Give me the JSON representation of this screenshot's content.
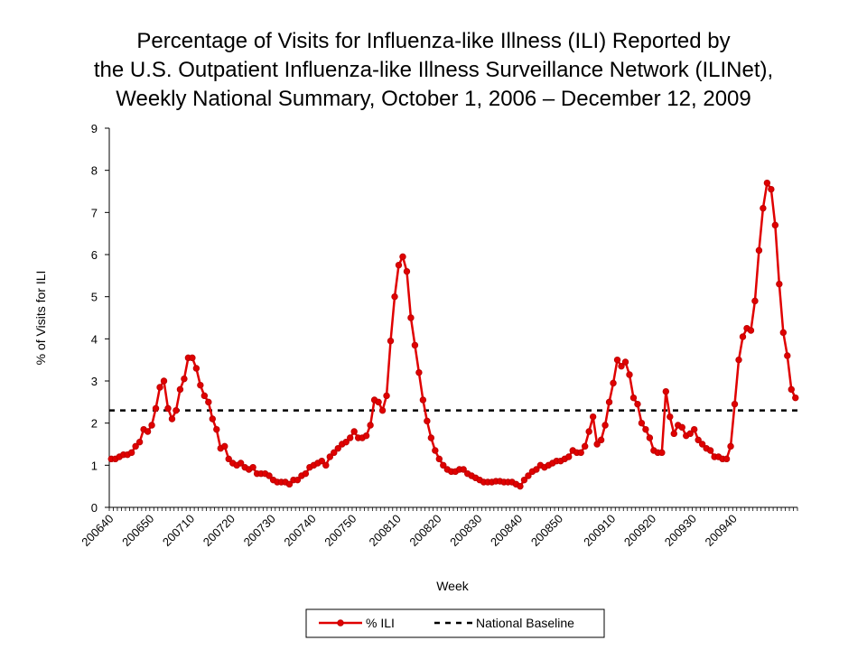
{
  "title": {
    "line1": "Percentage of Visits for Influenza-like Illness (ILI) Reported by",
    "line2": "the U.S. Outpatient Influenza-like Illness Surveillance Network (ILINet),",
    "line3": "Weekly National Summary, October 1, 2006 – December 12, 2009"
  },
  "chart_data": {
    "type": "line",
    "xlabel": "Week",
    "ylabel": "% of Visits for ILI",
    "ylim": [
      0,
      9
    ],
    "yticks": [
      0,
      1,
      2,
      3,
      4,
      5,
      6,
      7,
      8,
      9
    ],
    "grid": false,
    "legend_position": "bottom-center",
    "x_tick_labels": [
      {
        "index": 0,
        "label": "200640"
      },
      {
        "index": 10,
        "label": "200650"
      },
      {
        "index": 20,
        "label": "200710"
      },
      {
        "index": 30,
        "label": "200720"
      },
      {
        "index": 40,
        "label": "200730"
      },
      {
        "index": 50,
        "label": "200740"
      },
      {
        "index": 60,
        "label": "200750"
      },
      {
        "index": 71,
        "label": "200810"
      },
      {
        "index": 81,
        "label": "200820"
      },
      {
        "index": 91,
        "label": "200830"
      },
      {
        "index": 101,
        "label": "200840"
      },
      {
        "index": 111,
        "label": "200850"
      },
      {
        "index": 124,
        "label": "200910"
      },
      {
        "index": 134,
        "label": "200920"
      },
      {
        "index": 144,
        "label": "200930"
      },
      {
        "index": 154,
        "label": "200940"
      }
    ],
    "series": [
      {
        "name": "% ILI",
        "color": "#e00000",
        "marker": "circle",
        "values": [
          1.15,
          1.15,
          1.2,
          1.25,
          1.25,
          1.3,
          1.45,
          1.55,
          1.85,
          1.8,
          1.95,
          2.35,
          2.85,
          3.0,
          2.35,
          2.1,
          2.3,
          2.8,
          3.05,
          3.55,
          3.55,
          3.3,
          2.9,
          2.65,
          2.5,
          2.1,
          1.85,
          1.4,
          1.45,
          1.15,
          1.05,
          1.0,
          1.05,
          0.95,
          0.9,
          0.95,
          0.8,
          0.8,
          0.8,
          0.75,
          0.65,
          0.6,
          0.6,
          0.6,
          0.55,
          0.65,
          0.65,
          0.75,
          0.8,
          0.95,
          1.0,
          1.05,
          1.1,
          1.0,
          1.2,
          1.3,
          1.4,
          1.5,
          1.55,
          1.65,
          1.8,
          1.65,
          1.65,
          1.7,
          1.95,
          2.55,
          2.5,
          2.3,
          2.65,
          3.95,
          5.0,
          5.75,
          5.95,
          5.6,
          4.5,
          3.85,
          3.2,
          2.55,
          2.05,
          1.65,
          1.35,
          1.15,
          1.0,
          0.9,
          0.85,
          0.85,
          0.9,
          0.9,
          0.8,
          0.75,
          0.7,
          0.65,
          0.6,
          0.6,
          0.6,
          0.62,
          0.62,
          0.6,
          0.6,
          0.6,
          0.55,
          0.5,
          0.65,
          0.75,
          0.85,
          0.9,
          1.0,
          0.95,
          1.0,
          1.05,
          1.1,
          1.1,
          1.15,
          1.2,
          1.35,
          1.3,
          1.3,
          1.45,
          1.8,
          2.15,
          1.5,
          1.6,
          1.95,
          2.5,
          2.95,
          3.5,
          3.35,
          3.45,
          3.15,
          2.6,
          2.45,
          2.0,
          1.85,
          1.65,
          1.35,
          1.3,
          1.3,
          2.75,
          2.15,
          1.75,
          1.95,
          1.9,
          1.7,
          1.75,
          1.85,
          1.6,
          1.5,
          1.4,
          1.35,
          1.2,
          1.2,
          1.15,
          1.15,
          1.45,
          2.45,
          3.5,
          4.05,
          4.25,
          4.2,
          4.9,
          6.1,
          7.1,
          7.7,
          7.55,
          6.7,
          5.3,
          4.15,
          3.6,
          2.8,
          2.6
        ]
      },
      {
        "name": "National Baseline",
        "color": "#000000",
        "style": "dashed",
        "constant": 2.3
      }
    ]
  }
}
